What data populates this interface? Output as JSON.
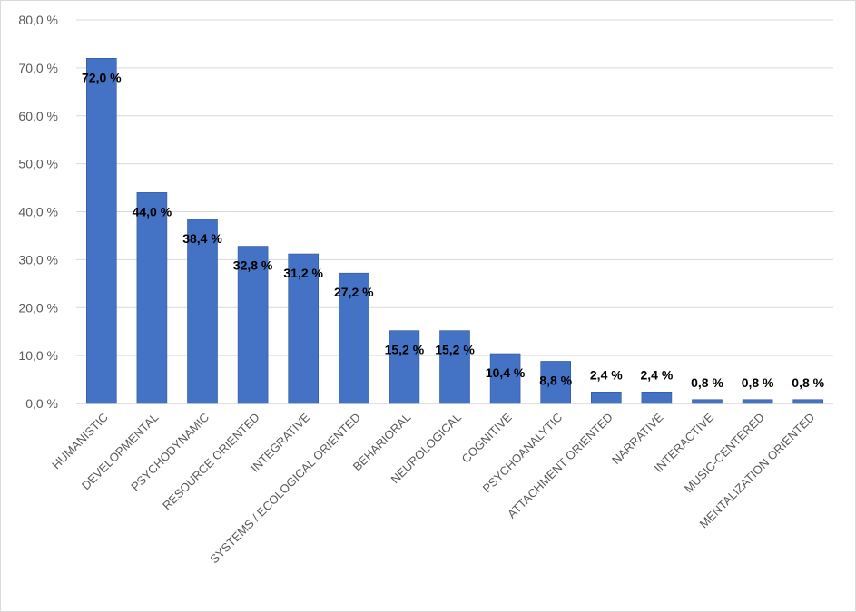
{
  "chart_data": {
    "type": "bar",
    "title": "",
    "xlabel": "",
    "ylabel": "",
    "ylim": [
      0,
      80
    ],
    "grid": true,
    "legend": "none",
    "y_ticks": [
      "0,0 %",
      "10,0 %",
      "20,0 %",
      "30,0 %",
      "40,0 %",
      "50,0 %",
      "60,0 %",
      "70,0 %",
      "80,0 %"
    ],
    "categories": [
      "HUMANISTIC",
      "DEVELOPMENTAL",
      "PSYCHODYNAMIC",
      "RESOURCE ORIENTED",
      "INTEGRATIVE",
      "SYSTEMS / ECOLOGICAL ORIENTED",
      "BEHARIORAL",
      "NEUROLOGICAL",
      "COGNITIVE",
      "PSYCHOANALYTIC",
      "ATTACHMENT ORIENTED",
      "NARRATIVE",
      "INTERACTIVE",
      "MUSIC-CENTERED",
      "MENTALIZATION ORIENTED"
    ],
    "values": [
      72.0,
      44.0,
      38.4,
      32.8,
      31.2,
      27.2,
      15.2,
      15.2,
      10.4,
      8.8,
      2.4,
      2.4,
      0.8,
      0.8,
      0.8
    ],
    "data_labels": [
      "72,0 %",
      "44,0 %",
      "38,4 %",
      "32,8 %",
      "31,2 %",
      "27,2 %",
      "15,2 %",
      "15,2 %",
      "10,4 %",
      "8,8 %",
      "2,4 %",
      "2,4 %",
      "0,8 %",
      "0,8 %",
      "0,8 %"
    ],
    "colors": {
      "bar": "#4472C4",
      "bar_edge": "#2F5597",
      "grid": "#D9D9D9",
      "tick_text": "#595959",
      "data_label_text": "#000000"
    }
  }
}
